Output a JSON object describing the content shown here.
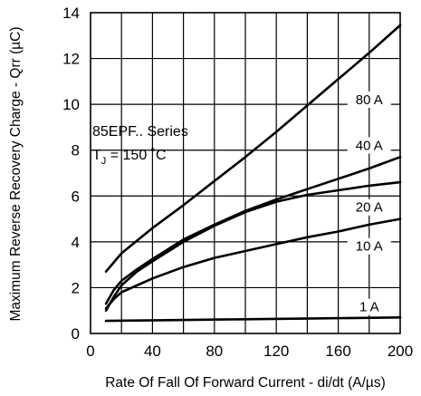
{
  "chart_data": {
    "type": "line",
    "title": "",
    "xlabel": "Rate Of Fall Of Forward Current - di/dt (A/µs)",
    "ylabel": "Maximum Reverse Recovery Charge - Qrr (µC)",
    "xlim": [
      0,
      200
    ],
    "ylim": [
      0,
      14
    ],
    "x_ticks": [
      0,
      40,
      80,
      120,
      160,
      200
    ],
    "y_ticks": [
      0,
      2,
      4,
      6,
      8,
      10,
      12,
      14
    ],
    "x_grid_step": 20,
    "y_grid_step": 2,
    "grid": true,
    "annotation": {
      "line1": "85EPF.. Series",
      "line2_prefix": "T",
      "line2_sub": "J",
      "line2_suffix": " = 150 ˚C"
    },
    "series": [
      {
        "name": "80 A",
        "x": [
          10,
          20,
          40,
          60,
          80,
          100,
          120,
          140,
          160,
          180,
          200
        ],
        "y": [
          2.7,
          3.5,
          4.6,
          5.6,
          6.65,
          7.7,
          8.8,
          9.95,
          11.1,
          12.25,
          13.45
        ]
      },
      {
        "name": "40 A",
        "x": [
          10,
          15,
          20,
          30,
          40,
          60,
          80,
          100,
          120,
          140,
          160,
          180,
          200
        ],
        "y": [
          1.3,
          1.9,
          2.3,
          2.8,
          3.25,
          4.1,
          4.75,
          5.35,
          5.85,
          6.3,
          6.75,
          7.2,
          7.7
        ]
      },
      {
        "name": "20 A",
        "x": [
          10,
          15,
          20,
          30,
          40,
          60,
          80,
          100,
          120,
          140,
          160,
          180,
          200
        ],
        "y": [
          1.0,
          1.6,
          2.1,
          2.7,
          3.15,
          4.0,
          4.7,
          5.3,
          5.75,
          6.05,
          6.25,
          6.45,
          6.6
        ]
      },
      {
        "name": "10 A",
        "x": [
          10,
          15,
          20,
          40,
          60,
          80,
          100,
          120,
          140,
          160,
          180,
          200
        ],
        "y": [
          1.1,
          1.5,
          1.8,
          2.4,
          2.9,
          3.3,
          3.6,
          3.9,
          4.2,
          4.45,
          4.75,
          5.0
        ]
      },
      {
        "name": "1 A",
        "x": [
          10,
          50,
          100,
          150,
          200
        ],
        "y": [
          0.55,
          0.58,
          0.62,
          0.66,
          0.7
        ]
      }
    ],
    "series_label_pos": [
      {
        "x": 180,
        "y": 10.05
      },
      {
        "x": 180,
        "y": 8.05
      },
      {
        "x": 180,
        "y": 5.35
      },
      {
        "x": 180,
        "y": 3.65
      },
      {
        "x": 180,
        "y": 1.0
      }
    ]
  }
}
